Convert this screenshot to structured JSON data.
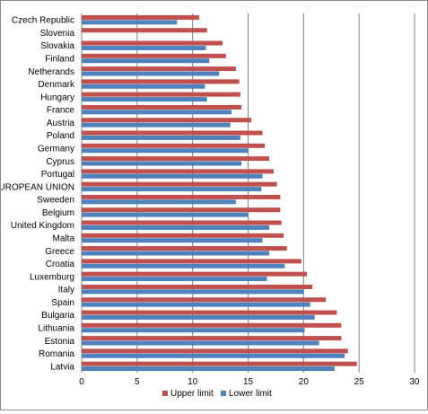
{
  "chart_data": {
    "type": "bar",
    "orientation": "horizontal",
    "title": "",
    "xlabel": "",
    "ylabel": "",
    "xlim": [
      0,
      30
    ],
    "x_ticks": [
      0,
      5,
      10,
      15,
      20,
      25,
      30
    ],
    "grid": "vertical",
    "legend_position": "bottom",
    "categories": [
      "Czech Republic",
      "Slovenia",
      "Slovakia",
      "Finland",
      "Netherands",
      "Denmark",
      "Hungary",
      "France",
      "Austria",
      "Poland",
      "Germany",
      "Cyprus",
      "Portugal",
      "EUROPEAN UNION",
      "Sweeden",
      "Belgium",
      "United Kingdom",
      "Malta",
      "Greece",
      "Croatia",
      "Luxemburg",
      "Italy",
      "Spain",
      "Bulgaria",
      "Lithuania",
      "Estonia",
      "Romania",
      "Latvia"
    ],
    "series": [
      {
        "name": "Upper limit",
        "color": "#c0504d",
        "values": [
          10.6,
          11.3,
          12.7,
          13.0,
          13.9,
          14.2,
          14.3,
          14.4,
          15.3,
          16.3,
          16.5,
          16.9,
          17.3,
          17.6,
          17.9,
          17.9,
          18.0,
          18.2,
          18.5,
          19.8,
          20.3,
          20.8,
          22.0,
          23.0,
          23.4,
          23.4,
          24.0,
          24.8
        ]
      },
      {
        "name": "Lower limit",
        "color": "#4f81bd",
        "values": [
          8.6,
          0,
          11.2,
          11.5,
          12.4,
          11.1,
          11.3,
          13.5,
          13.4,
          14.3,
          15.0,
          14.4,
          16.3,
          16.2,
          13.9,
          15.0,
          16.9,
          16.3,
          16.9,
          18.3,
          16.7,
          20.0,
          20.6,
          21.0,
          20.1,
          21.4,
          23.7,
          22.8
        ]
      }
    ]
  }
}
